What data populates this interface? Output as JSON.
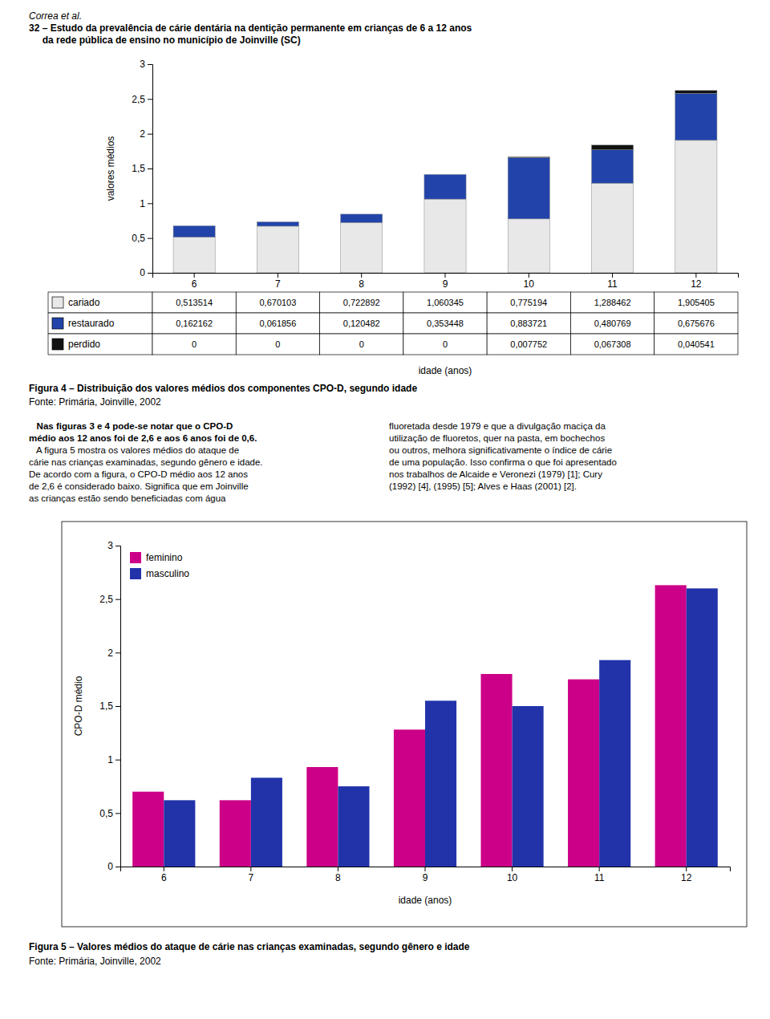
{
  "header": [
    "Correa et al.",
    "32 – Estudo da prevalência de cárie dentária na dentição permanente em crianças de 6 a 12 anos",
    "     da rede pública de ensino no município de Joinville (SC)"
  ],
  "body_text": {
    "left_bold": [
      "   Nas figuras 3 e 4 pode-se notar que o CPO-D",
      "médio aos 12 anos foi de 2,6 e aos 6 anos foi de 0,6."
    ],
    "left": [
      "   A figura 5 mostra os valores médios do ataque de",
      "cárie nas crianças examinadas, segundo gênero e idade.",
      "De acordo com a figura, o CPO-D médio aos 12 anos",
      "de 2,6 é considerado baixo. Significa que em Joinville",
      "as crianças estão sendo beneficiadas com água"
    ],
    "right": [
      "fluoretada desde 1979 e que a divulgação maciça da",
      "utilização de fluoretos, quer na pasta, em bochechos",
      "ou outros, melhora significativamente o índice de cárie",
      "de uma população. Isso confirma o que foi apresentado",
      "nos trabalhos de Alcaide e Veronezi (1979) [1]; Cury",
      "(1992) [4], (1995) [5]; Alves e Haas (2001) [2]."
    ]
  },
  "chart_data": [
    {
      "type": "bar",
      "stacked": true,
      "title": "Figura 4 – Distribuição dos valores médios dos componentes CPO-D, segundo idade",
      "subtitle": "Fonte: Primária, Joinville, 2002",
      "xlabel": "idade (anos)",
      "ylabel": "valores médios",
      "categories": [
        6,
        7,
        8,
        9,
        10,
        11,
        12
      ],
      "series": [
        {
          "name": "cariado",
          "color": "#e8e8e8",
          "values": [
            0.513514,
            0.670103,
            0.722892,
            1.060345,
            0.775194,
            1.288462,
            1.905405
          ],
          "value_labels": [
            "0,513514",
            "0,670103",
            "0,722892",
            "1,060345",
            "0,775194",
            "1,288462",
            "1,905405"
          ]
        },
        {
          "name": "restaurado",
          "color": "#2244aa",
          "values": [
            0.162162,
            0.061856,
            0.120482,
            0.353448,
            0.883721,
            0.480769,
            0.675676
          ],
          "value_labels": [
            "0,162162",
            "0,061856",
            "0,120482",
            "0,353448",
            "0,883721",
            "0,480769",
            "0,675676"
          ]
        },
        {
          "name": "perdido",
          "color": "#111111",
          "values": [
            0,
            0,
            0,
            0,
            0.007752,
            0.067308,
            0.040541
          ],
          "value_labels": [
            "0",
            "0",
            "0",
            "0",
            "0,007752",
            "0,067308",
            "0,040541"
          ]
        }
      ],
      "ylim": [
        0,
        3
      ],
      "yticks": [
        0,
        {
          "value": 0.5,
          "label": "0,5"
        },
        1,
        {
          "value": 1.5,
          "label": "1,5"
        },
        2,
        {
          "value": 2.5,
          "label": "2,5"
        },
        3
      ]
    },
    {
      "type": "bar",
      "title": "Figura 5 – Valores médios do ataque de cárie nas crianças examinadas, segundo gênero e idade",
      "subtitle": "Fonte: Primária, Joinville, 2002",
      "xlabel": "idade (anos)",
      "ylabel": "CPO-D médio",
      "categories": [
        6,
        7,
        8,
        9,
        10,
        11,
        12
      ],
      "series": [
        {
          "name": "feminino",
          "color": "#cc0088",
          "values": [
            0.7,
            0.62,
            0.93,
            1.28,
            1.8,
            1.75,
            2.63
          ]
        },
        {
          "name": "masculino",
          "color": "#2233aa",
          "values": [
            0.62,
            0.83,
            0.75,
            1.55,
            1.5,
            1.93,
            2.6
          ]
        }
      ],
      "ylim": [
        0,
        3
      ],
      "yticks": [
        0,
        {
          "value": 0.5,
          "label": "0,5"
        },
        1,
        {
          "value": 1.5,
          "label": "1,5"
        },
        2,
        {
          "value": 2.5,
          "label": "2,5"
        },
        3
      ],
      "legend": "upper left"
    }
  ]
}
